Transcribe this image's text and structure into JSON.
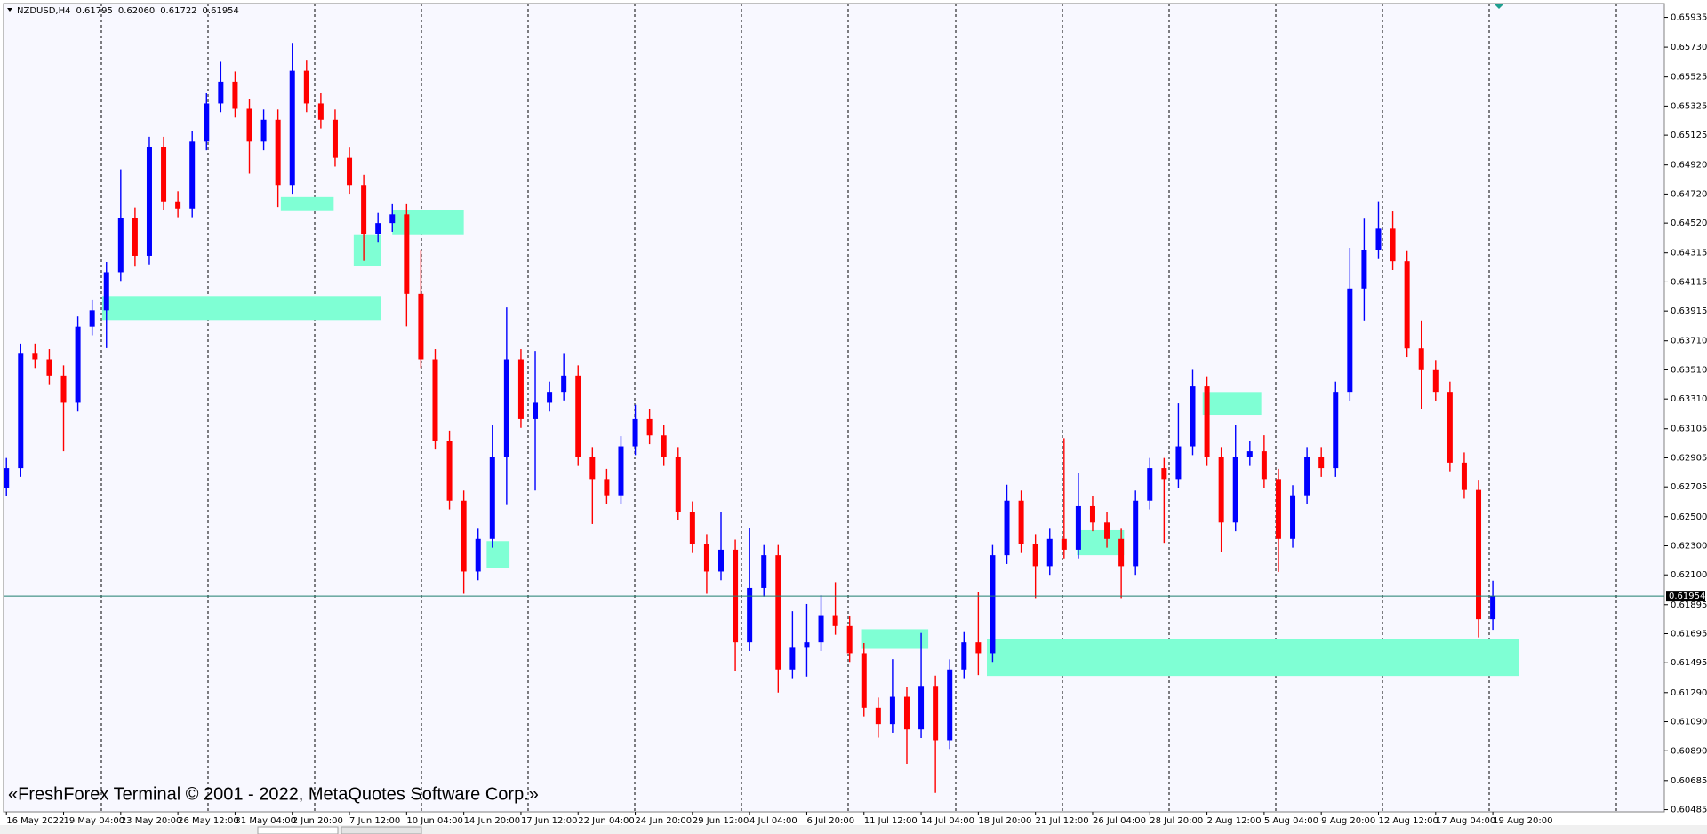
{
  "chart_data": {
    "type": "candlestick",
    "title": "NZDUSD,H4",
    "quote": [
      "0.61795",
      "0.62060",
      "0.61722",
      "0.61954"
    ],
    "watermark": "«FreshForex Terminal © 2001 - 2022, MetaQuotes Software Corp.»",
    "up_color": "#0000ff",
    "down_color": "#ff0000",
    "zone_color": "#7fffd4",
    "price_line_color": "#1f7f6f",
    "open": [
      0.627,
      0.62834,
      0.63621,
      0.63583,
      0.63471,
      0.63284,
      0.63808,
      0.6392,
      0.64182,
      0.64557,
      0.64295,
      0.65044,
      0.64669,
      0.6462,
      0.65081,
      0.65343,
      0.65493,
      0.65306,
      0.65081,
      0.65231,
      0.64782,
      0.65568,
      0.65343,
      0.65231,
      0.64969,
      0.64782,
      0.64445,
      0.6452,
      0.6458,
      0.64033,
      0.63583,
      0.63022,
      0.6261,
      0.62123,
      0.62347,
      0.62909,
      0.63583,
      0.63171,
      0.63284,
      0.63359,
      0.63471,
      0.62909,
      0.62759,
      0.62647,
      0.62984,
      0.63171,
      0.63059,
      0.62909,
      0.62535,
      0.6231,
      0.62123,
      0.62273,
      0.61636,
      0.6201,
      0.62235,
      0.61449,
      0.61598,
      0.61636,
      0.61823,
      0.61748,
      0.61561,
      0.61186,
      0.61074,
      0.61261,
      0.61037,
      0.61336,
      0.60962,
      0.61449,
      0.61636,
      0.61561,
      0.62235,
      0.6261,
      0.6231,
      0.6216,
      0.62347,
      0.62273,
      0.62572,
      0.6246,
      0.62347,
      0.6216,
      0.6261,
      0.62834,
      0.62759,
      0.62984,
      0.63396,
      0.62909,
      0.6246,
      0.62909,
      0.6295,
      0.62759,
      0.62347,
      0.62647,
      0.62909,
      0.62834,
      0.63359,
      0.6407,
      0.64332,
      0.64482,
      0.64257,
      0.63658,
      0.63508,
      0.63359,
      0.62872,
      0.62684,
      0.61795
    ],
    "high": [
      0.62904,
      0.63691,
      0.63691,
      0.63653,
      0.63541,
      0.63878,
      0.6399,
      0.64252,
      0.6489,
      0.64627,
      0.65114,
      0.65114,
      0.64739,
      0.65151,
      0.65413,
      0.6563,
      0.65563,
      0.65376,
      0.65301,
      0.65301,
      0.6576,
      0.65638,
      0.65413,
      0.65301,
      0.65039,
      0.64852,
      0.6459,
      0.6465,
      0.6465,
      0.6433,
      0.63653,
      0.63092,
      0.6268,
      0.62417,
      0.6313,
      0.6394,
      0.63653,
      0.6364,
      0.63429,
      0.6362,
      0.63541,
      0.62979,
      0.62829,
      0.63054,
      0.6327,
      0.63241,
      0.63129,
      0.62979,
      0.62605,
      0.6238,
      0.6253,
      0.62343,
      0.6242,
      0.62305,
      0.62305,
      0.6185,
      0.619,
      0.6196,
      0.6205,
      0.61818,
      0.61631,
      0.61256,
      0.6152,
      0.61331,
      0.617,
      0.61406,
      0.61519,
      0.61706,
      0.6198,
      0.62305,
      0.6272,
      0.6268,
      0.6238,
      0.62417,
      0.6304,
      0.628,
      0.62642,
      0.6253,
      0.62417,
      0.6268,
      0.62904,
      0.62904,
      0.6328,
      0.6351,
      0.63466,
      0.62979,
      0.6313,
      0.6302,
      0.6306,
      0.62829,
      0.62717,
      0.62979,
      0.62979,
      0.63429,
      0.6435,
      0.6455,
      0.6467,
      0.646,
      0.64327,
      0.6385,
      0.63578,
      0.63429,
      0.62942,
      0.62754,
      0.6206
    ],
    "low": [
      0.6264,
      0.62774,
      0.63523,
      0.63411,
      0.6295,
      0.63224,
      0.63748,
      0.6366,
      0.64122,
      0.6422,
      0.64235,
      0.64609,
      0.6456,
      0.6456,
      0.65021,
      0.65283,
      0.65246,
      0.6486,
      0.65021,
      0.6463,
      0.64722,
      0.65283,
      0.65171,
      0.64909,
      0.64722,
      0.6426,
      0.64385,
      0.6446,
      0.6381,
      0.63523,
      0.62962,
      0.6255,
      0.6197,
      0.62063,
      0.62287,
      0.6258,
      0.63111,
      0.6268,
      0.63224,
      0.633,
      0.62849,
      0.6245,
      0.62587,
      0.62587,
      0.62924,
      0.62999,
      0.62849,
      0.62475,
      0.6225,
      0.6197,
      0.62063,
      0.6144,
      0.61576,
      0.6195,
      0.6129,
      0.61389,
      0.614,
      0.61576,
      0.61688,
      0.61501,
      0.61126,
      0.6098,
      0.61014,
      0.608,
      0.60977,
      0.606,
      0.60902,
      0.61389,
      0.6141,
      0.61501,
      0.62175,
      0.6225,
      0.6194,
      0.621,
      0.62213,
      0.62213,
      0.624,
      0.62287,
      0.6194,
      0.621,
      0.6255,
      0.6232,
      0.62699,
      0.62924,
      0.62849,
      0.6226,
      0.624,
      0.62849,
      0.62699,
      0.6212,
      0.62287,
      0.62587,
      0.62774,
      0.62774,
      0.63299,
      0.6385,
      0.64272,
      0.64197,
      0.63598,
      0.6324,
      0.63299,
      0.62812,
      0.62624,
      0.6167,
      0.61722
    ],
    "close": [
      0.62834,
      0.63621,
      0.63583,
      0.63471,
      0.63284,
      0.63808,
      0.6392,
      0.64182,
      0.64557,
      0.64295,
      0.65044,
      0.64669,
      0.6462,
      0.65081,
      0.65343,
      0.65493,
      0.65306,
      0.65081,
      0.65231,
      0.64782,
      0.65568,
      0.65343,
      0.65231,
      0.64969,
      0.64782,
      0.64445,
      0.6452,
      0.6458,
      0.64033,
      0.63583,
      0.63022,
      0.6261,
      0.62123,
      0.62347,
      0.62909,
      0.63583,
      0.63171,
      0.63284,
      0.63359,
      0.63471,
      0.62909,
      0.62759,
      0.62647,
      0.62984,
      0.63171,
      0.63059,
      0.62909,
      0.62535,
      0.6231,
      0.62123,
      0.62273,
      0.61636,
      0.6201,
      0.62235,
      0.61449,
      0.61598,
      0.61636,
      0.61823,
      0.61748,
      0.61561,
      0.61186,
      0.61074,
      0.61261,
      0.61037,
      0.61336,
      0.60962,
      0.61449,
      0.61636,
      0.61561,
      0.62235,
      0.6261,
      0.6231,
      0.6216,
      0.62347,
      0.62273,
      0.62572,
      0.6246,
      0.62347,
      0.6216,
      0.6261,
      0.62834,
      0.62759,
      0.62984,
      0.63396,
      0.62909,
      0.6246,
      0.62909,
      0.6295,
      0.62759,
      0.62347,
      0.62647,
      0.62909,
      0.62834,
      0.63359,
      0.6407,
      0.64332,
      0.64482,
      0.64257,
      0.63658,
      0.63508,
      0.63359,
      0.62872,
      0.62684,
      0.61795,
      0.61954
    ],
    "zones": [
      {
        "x0": 6.7,
        "x1": 26.2,
        "y0": 0.63853,
        "y1": 0.64018
      },
      {
        "x0": 19.2,
        "x1": 22.9,
        "y0": 0.64602,
        "y1": 0.64699
      },
      {
        "x0": 27.0,
        "x1": 32.0,
        "y0": 0.64437,
        "y1": 0.64609
      },
      {
        "x0": 24.3,
        "x1": 26.2,
        "y0": 0.64227,
        "y1": 0.64437
      },
      {
        "x0": 33.6,
        "x1": 35.2,
        "y0": 0.62145,
        "y1": 0.62332
      },
      {
        "x0": 59.8,
        "x1": 64.5,
        "y0": 0.61591,
        "y1": 0.61726
      },
      {
        "x0": 83.7,
        "x1": 87.8,
        "y0": 0.63201,
        "y1": 0.63358
      },
      {
        "x0": 74.9,
        "x1": 78.2,
        "y0": 0.62235,
        "y1": 0.62407
      },
      {
        "x0": 68.6,
        "x1": 105.8,
        "y0": 0.61404,
        "y1": 0.61658
      }
    ],
    "xlim": [
      -0.2,
      116.0
    ],
    "ylim": [
      0.6047,
      0.6603
    ],
    "xticks": [
      {
        "value": 0,
        "label": "16 May 2022"
      },
      {
        "value": 4,
        "label": "19 May 04:00"
      },
      {
        "value": 8,
        "label": "23 May 20:00"
      },
      {
        "value": 12,
        "label": "26 May 12:00"
      },
      {
        "value": 16,
        "label": "31 May 04:00"
      },
      {
        "value": 20,
        "label": "2 Jun 20:00"
      },
      {
        "value": 24,
        "label": "7 Jun 12:00"
      },
      {
        "value": 28,
        "label": "10 Jun 04:00"
      },
      {
        "value": 32,
        "label": "14 Jun 20:00"
      },
      {
        "value": 36,
        "label": "17 Jun 12:00"
      },
      {
        "value": 40,
        "label": "22 Jun 04:00"
      },
      {
        "value": 44,
        "label": "24 Jun 20:00"
      },
      {
        "value": 48,
        "label": "29 Jun 12:00"
      },
      {
        "value": 52,
        "label": "4 Jul 04:00"
      },
      {
        "value": 56,
        "label": "6 Jul 20:00"
      },
      {
        "value": 60,
        "label": "11 Jul 12:00"
      },
      {
        "value": 64,
        "label": "14 Jul 04:00"
      },
      {
        "value": 68,
        "label": "18 Jul 20:00"
      },
      {
        "value": 72,
        "label": "21 Jul 12:00"
      },
      {
        "value": 76,
        "label": "26 Jul 04:00"
      },
      {
        "value": 80,
        "label": "28 Jul 20:00"
      },
      {
        "value": 84,
        "label": "2 Aug 12:00"
      },
      {
        "value": 88,
        "label": "5 Aug 04:00"
      },
      {
        "value": 92,
        "label": "9 Aug 20:00"
      },
      {
        "value": 96,
        "label": "12 Aug 12:00"
      },
      {
        "value": 100,
        "label": "17 Aug 04:00"
      },
      {
        "value": 104,
        "label": "19 Aug 20:00"
      }
    ],
    "yticks": [
      0.65935,
      {
        "value": 0.6573,
        "label": "0.65730"
      },
      0.65525,
      0.65325,
      0.65125,
      {
        "value": 0.6492,
        "label": "0.64920"
      },
      {
        "value": 0.6472,
        "label": "0.64720"
      },
      {
        "value": 0.6452,
        "label": "0.64520"
      },
      0.64315,
      0.64115,
      0.63915,
      {
        "value": 0.6371,
        "label": "0.63710"
      },
      {
        "value": 0.6351,
        "label": "0.63510"
      },
      {
        "value": 0.6331,
        "label": "0.63310"
      },
      0.63105,
      0.62905,
      0.62705,
      {
        "value": 0.625,
        "label": "0.62500"
      },
      {
        "value": 0.623,
        "label": "0.62300"
      },
      {
        "value": 0.621,
        "label": "0.62100"
      },
      0.61895,
      0.61695,
      0.61495,
      {
        "value": 0.6129,
        "label": "0.61290"
      },
      {
        "value": 0.6109,
        "label": "0.61090"
      },
      {
        "value": 0.6089,
        "label": "0.60890"
      },
      0.60685,
      0.60485
    ]
  }
}
